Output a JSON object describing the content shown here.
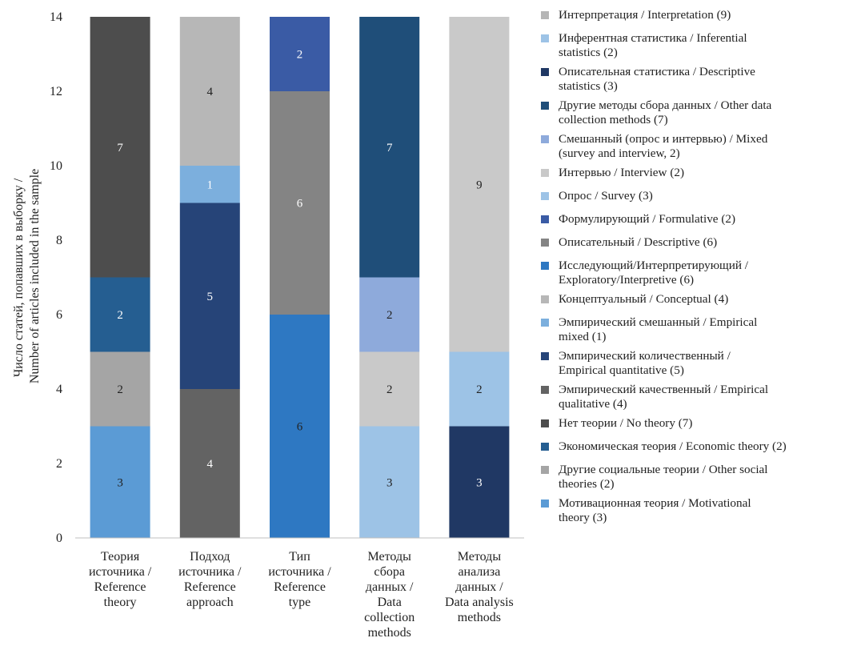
{
  "chart_data": {
    "type": "bar",
    "stacked": true,
    "ylabel_line1": "Число статей, попавших в выборку /",
    "ylabel_line2": "Number of articles included in the sample",
    "ylim": [
      0,
      14
    ],
    "yticks": [
      0,
      2,
      4,
      6,
      8,
      10,
      12,
      14
    ],
    "categories": [
      [
        "Теория",
        "источника /",
        "Reference",
        "theory"
      ],
      [
        "Подход",
        "источника /",
        "Reference",
        "approach"
      ],
      [
        "Тип",
        "источника /",
        "Reference",
        "type"
      ],
      [
        "Методы",
        "сбора",
        "данных /",
        "Data",
        "collection",
        "methods"
      ],
      [
        "Методы",
        "анализа",
        "данных /",
        "Data analysis",
        "methods"
      ]
    ],
    "stacks": [
      [
        {
          "name": "Мотивационная теория / Motivational theory (3)",
          "value": 3,
          "color": "#5b9bd5",
          "label_color": "#222222"
        },
        {
          "name": "Другие социальные теории / Other social theories (2)",
          "value": 2,
          "color": "#a5a5a5",
          "label_color": "#222222"
        },
        {
          "name": "Экономическая теория / Economic theory (2)",
          "value": 2,
          "color": "#255e91",
          "label_color": "#ffffff"
        },
        {
          "name": "Нет теории / No theory (7)",
          "value": 7,
          "color": "#4d4d4d",
          "label_color": "#ffffff"
        }
      ],
      [
        {
          "name": "Эмпирический качественный / Empirical qualitative (4)",
          "value": 4,
          "color": "#636363",
          "label_color": "#ffffff"
        },
        {
          "name": "Эмпирический количественный / Empirical quantitative (5)",
          "value": 5,
          "color": "#264478",
          "label_color": "#ffffff"
        },
        {
          "name": "Эмпирический смешанный / Empirical mixed (1)",
          "value": 1,
          "color": "#7cafdd",
          "label_color": "#ffffff"
        },
        {
          "name": "Концептуальный / Conceptual (4)",
          "value": 4,
          "color": "#b7b7b7",
          "label_color": "#222222"
        }
      ],
      [
        {
          "name": "Исследующий/Интерпретирующий / Exploratory/Interpretive (6)",
          "value": 6,
          "color": "#2e78c2",
          "label_color": "#222222"
        },
        {
          "name": "Описательный / Descriptive (6)",
          "value": 6,
          "color": "#848484",
          "label_color": "#ffffff"
        },
        {
          "name": "Формулирующий / Formulative (2)",
          "value": 2,
          "color": "#3a5ba5",
          "label_color": "#ffffff"
        }
      ],
      [
        {
          "name": "Опрос / Survey (3)",
          "value": 3,
          "color": "#9dc3e6",
          "label_color": "#222222"
        },
        {
          "name": "Интервью / Interview (2)",
          "value": 2,
          "color": "#c9c9c9",
          "label_color": "#222222"
        },
        {
          "name": "Смешанный (опрос и интервью) / Mixed (survey and interview, 2)",
          "value": 2,
          "color": "#8eaadb",
          "label_color": "#222222"
        },
        {
          "name": "Другие методы сбора данных / Other data collection methods (7)",
          "value": 7,
          "color": "#1f4e79",
          "label_color": "#ffffff"
        }
      ],
      [
        {
          "name": "Описательная статистика / Descriptive statistics (3)",
          "value": 3,
          "color": "#203864",
          "label_color": "#ffffff"
        },
        {
          "name": "Инферентная статистика / Inferential statistics (2)",
          "value": 2,
          "color": "#9dc3e6",
          "label_color": "#222222"
        },
        {
          "name": "Интерпретация / Interpretation (9)",
          "value": 9,
          "color": "#c9c9c9",
          "label_color": "#222222"
        }
      ]
    ],
    "legend_placement": "right",
    "legend": [
      {
        "lines": [
          "Интерпретация / Interpretation (9)"
        ],
        "color": "#b5b5b5"
      },
      {
        "lines": [
          "Инферентная статистика / Inferential",
          "statistics (2)"
        ],
        "color": "#9dc3e6"
      },
      {
        "lines": [
          "Описательная статистика / Descriptive",
          "statistics (3)"
        ],
        "color": "#203864"
      },
      {
        "lines": [
          "Другие методы сбора данных / Other data",
          "collection methods (7)"
        ],
        "color": "#1f4e79"
      },
      {
        "lines": [
          "Смешанный (опрос и интервью) / Mixed",
          "(survey and interview, 2)"
        ],
        "color": "#8eaadb"
      },
      {
        "lines": [
          "Интервью / Interview (2)"
        ],
        "color": "#c9c9c9"
      },
      {
        "lines": [
          "Опрос / Survey (3)"
        ],
        "color": "#9dc3e6"
      },
      {
        "lines": [
          "Формулирующий / Formulative (2)"
        ],
        "color": "#3a5ba5"
      },
      {
        "lines": [
          "Описательный / Descriptive (6)"
        ],
        "color": "#848484"
      },
      {
        "lines": [
          "Исследующий/Интерпретирующий /",
          "Exploratory/Interpretive (6)"
        ],
        "color": "#2e78c2"
      },
      {
        "lines": [
          "Концептуальный / Conceptual (4)"
        ],
        "color": "#b7b7b7"
      },
      {
        "lines": [
          "Эмпирический смешанный / Empirical",
          "mixed (1)"
        ],
        "color": "#7cafdd"
      },
      {
        "lines": [
          "Эмпирический количественный /",
          "Empirical quantitative (5)"
        ],
        "color": "#264478"
      },
      {
        "lines": [
          "Эмпирический качественный / Empirical",
          "qualitative (4)"
        ],
        "color": "#636363"
      },
      {
        "lines": [
          "Нет теории / No theory (7)"
        ],
        "color": "#4d4d4d"
      },
      {
        "lines": [
          "Экономическая теория / Economic theory (2)"
        ],
        "color": "#255e91"
      },
      {
        "lines": [
          "Другие социальные теории / Other social",
          "theories (2)"
        ],
        "color": "#a5a5a5"
      },
      {
        "lines": [
          "Мотивационная теория / Motivational",
          "theory (3)"
        ],
        "color": "#5b9bd5"
      }
    ]
  }
}
